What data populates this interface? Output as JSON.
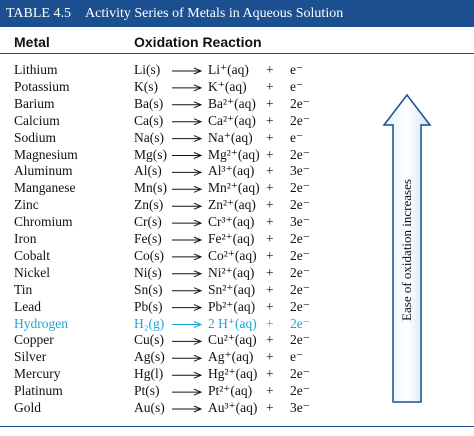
{
  "header": {
    "table_number": "TABLE 4.5",
    "title": "Activity Series of Metals in Aqueous Solution"
  },
  "table": {
    "columns": [
      "Metal",
      "Oxidation Reaction"
    ],
    "rows": [
      [
        "Lithium",
        "Li(s)",
        "Li⁺(aq)",
        "+",
        "e⁻"
      ],
      [
        "Potassium",
        "K(s)",
        "K⁺(aq)",
        "+",
        "e⁻"
      ],
      [
        "Barium",
        "Ba(s)",
        "Ba²⁺(aq)",
        "+",
        "2e⁻"
      ],
      [
        "Calcium",
        "Ca(s)",
        "Ca²⁺(aq)",
        "+",
        "2e⁻"
      ],
      [
        "Sodium",
        "Na(s)",
        "Na⁺(aq)",
        "+",
        "e⁻"
      ],
      [
        "Magnesium",
        "Mg(s)",
        "Mg²⁺(aq)",
        "+",
        "2e⁻"
      ],
      [
        "Aluminum",
        "Al(s)",
        "Al³⁺(aq)",
        "+",
        "3e⁻"
      ],
      [
        "Manganese",
        "Mn(s)",
        "Mn²⁺(aq)",
        "+",
        "2e⁻"
      ],
      [
        "Zinc",
        "Zn(s)",
        "Zn²⁺(aq)",
        "+",
        "2e⁻"
      ],
      [
        "Chromium",
        "Cr(s)",
        "Cr³⁺(aq)",
        "+",
        "3e⁻"
      ],
      [
        "Iron",
        "Fe(s)",
        "Fe²⁺(aq)",
        "+",
        "2e⁻"
      ],
      [
        "Cobalt",
        "Co(s)",
        "Co²⁺(aq)",
        "+",
        "2e⁻"
      ],
      [
        "Nickel",
        "Ni(s)",
        "Ni²⁺(aq)",
        "+",
        "2e⁻"
      ],
      [
        "Tin",
        "Sn(s)",
        "Sn²⁺(aq)",
        "+",
        "2e⁻"
      ],
      [
        "Lead",
        "Pb(s)",
        "Pb²⁺(aq)",
        "+",
        "2e⁻"
      ],
      [
        "Hydrogen",
        "H₂(g)",
        "2 H⁺(aq)",
        "+",
        "2e⁻"
      ],
      [
        "Copper",
        "Cu(s)",
        "Cu²⁺(aq)",
        "+",
        "2e⁻"
      ],
      [
        "Silver",
        "Ag(s)",
        "Ag⁺(aq)",
        "+",
        "e⁻"
      ],
      [
        "Mercury",
        "Hg(l)",
        "Hg²⁺(aq)",
        "+",
        "2e⁻"
      ],
      [
        "Platinum",
        "Pt(s)",
        "Pt²⁺(aq)",
        "+",
        "2e⁻"
      ],
      [
        "Gold",
        "Au(s)",
        "Au³⁺(aq)",
        "+",
        "3e⁻"
      ]
    ]
  },
  "side_arrow": {
    "label": "Ease of oxidation increases"
  }
}
